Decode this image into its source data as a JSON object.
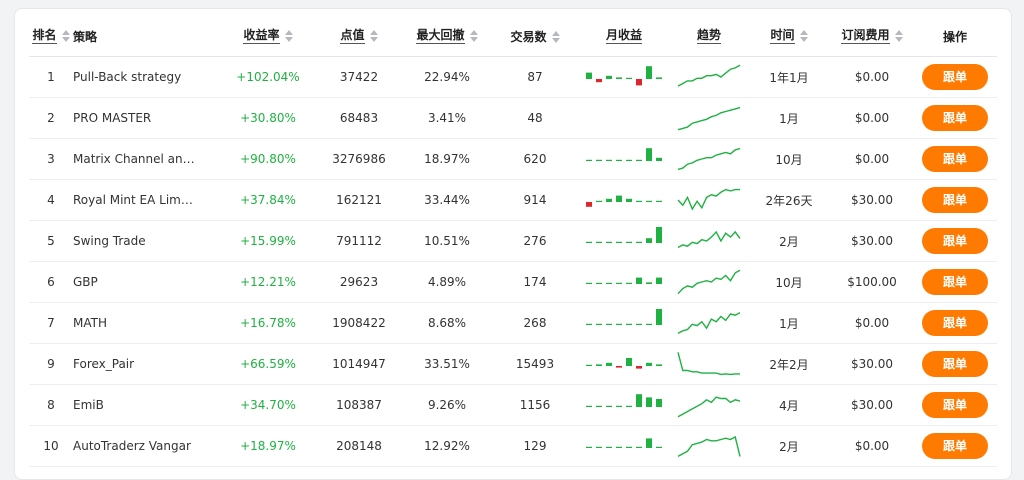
{
  "colors": {
    "accent": "#ff7a00",
    "positive": "#1fb141",
    "negative": "#e0262d"
  },
  "headers": {
    "rank": "排名",
    "strategy": "策略",
    "return": "收益率",
    "points": "点值",
    "drawdown": "最大回撤",
    "trades": "交易数",
    "monthly": "月收益",
    "trend": "趋势",
    "time": "时间",
    "fee": "订阅费用",
    "action": "操作"
  },
  "rows": [
    {
      "rank": "1",
      "name": "Pull-Back strategy",
      "return": "+102.04%",
      "points": "37422",
      "drawdown": "22.94%",
      "trades": "87",
      "time": "1年1月",
      "fee": "$0.00",
      "action": "跟单",
      "monthly": [
        2,
        -1,
        1,
        0.5,
        0,
        -2,
        4,
        0.5
      ],
      "trend": [
        0.15,
        0.25,
        0.35,
        0.35,
        0.45,
        0.45,
        0.55,
        0.55,
        0.6,
        0.5,
        0.65,
        0.8,
        0.85,
        0.95
      ]
    },
    {
      "rank": "2",
      "name": "PRO MASTER",
      "return": "+30.80%",
      "points": "68483",
      "drawdown": "3.41%",
      "trades": "48",
      "time": "1月",
      "fee": "$0.00",
      "action": "跟单",
      "monthly": [],
      "trend": [
        0.05,
        0.1,
        0.15,
        0.3,
        0.35,
        0.4,
        0.45,
        0.55,
        0.6,
        0.7,
        0.75,
        0.8,
        0.85,
        0.9
      ]
    },
    {
      "rank": "3",
      "name": "Matrix Channel anal…",
      "return": "+90.80%",
      "points": "3276986",
      "drawdown": "18.97%",
      "trades": "620",
      "time": "10月",
      "fee": "$0.00",
      "action": "跟单",
      "monthly": [
        0,
        0,
        0,
        0,
        0,
        0,
        4,
        1
      ],
      "trend": [
        0.1,
        0.15,
        0.3,
        0.35,
        0.45,
        0.5,
        0.55,
        0.55,
        0.65,
        0.7,
        0.75,
        0.7,
        0.85,
        0.9
      ]
    },
    {
      "rank": "4",
      "name": "Royal Mint EA Limitl…",
      "return": "+37.84%",
      "points": "162121",
      "drawdown": "33.44%",
      "trades": "914",
      "time": "2年26天",
      "fee": "$30.00",
      "action": "跟单",
      "monthly": [
        -1.5,
        0.3,
        1,
        2,
        1,
        0,
        0.3,
        0
      ],
      "trend": [
        0.5,
        0.3,
        0.6,
        0.15,
        0.45,
        0.2,
        0.6,
        0.7,
        0.65,
        0.8,
        0.9,
        0.85,
        0.9,
        0.9
      ]
    },
    {
      "rank": "5",
      "name": "Swing Trade",
      "return": "+15.99%",
      "points": "791112",
      "drawdown": "10.51%",
      "trades": "276",
      "time": "2月",
      "fee": "$30.00",
      "action": "跟单",
      "monthly": [
        0,
        0,
        0,
        0,
        0,
        0,
        1.5,
        5
      ],
      "trend": [
        0.25,
        0.35,
        0.3,
        0.45,
        0.4,
        0.55,
        0.5,
        0.65,
        0.85,
        0.5,
        0.8,
        0.65,
        0.85,
        0.6
      ]
    },
    {
      "rank": "6",
      "name": "GBP",
      "return": "+12.21%",
      "points": "29623",
      "drawdown": "4.89%",
      "trades": "174",
      "time": "10月",
      "fee": "$100.00",
      "action": "跟单",
      "monthly": [
        0,
        0,
        0,
        0,
        0,
        2,
        0.5,
        2
      ],
      "trend": [
        0.05,
        0.25,
        0.35,
        0.3,
        0.45,
        0.5,
        0.55,
        0.5,
        0.65,
        0.6,
        0.75,
        0.55,
        0.85,
        0.95
      ]
    },
    {
      "rank": "7",
      "name": "MATH",
      "return": "+16.78%",
      "points": "1908422",
      "drawdown": "8.68%",
      "trades": "268",
      "time": "1月",
      "fee": "$0.00",
      "action": "跟单",
      "monthly": [
        0,
        0,
        0,
        0,
        0,
        0,
        0,
        5
      ],
      "trend": [
        0.1,
        0.2,
        0.25,
        0.45,
        0.4,
        0.55,
        0.3,
        0.65,
        0.55,
        0.75,
        0.6,
        0.85,
        0.8,
        0.9
      ]
    },
    {
      "rank": "9",
      "name": "Forex_Pair",
      "return": "+66.59%",
      "points": "1014947",
      "drawdown": "33.51%",
      "trades": "15493",
      "time": "2年2月",
      "fee": "$30.00",
      "action": "跟单",
      "monthly": [
        0,
        0.5,
        1,
        -0.5,
        2.5,
        -0.8,
        1,
        0.5
      ],
      "trend": [
        0.95,
        0.25,
        0.25,
        0.2,
        0.2,
        0.15,
        0.15,
        0.15,
        0.15,
        0.1,
        0.12,
        0.1,
        0.12,
        0.12
      ]
    },
    {
      "rank": "8",
      "name": "EmiB",
      "return": "+34.70%",
      "points": "108387",
      "drawdown": "9.26%",
      "trades": "1156",
      "time": "4月",
      "fee": "$30.00",
      "action": "跟单",
      "monthly": [
        0,
        0,
        0,
        0,
        0,
        4,
        3,
        2.5
      ],
      "trend": [
        0.05,
        0.15,
        0.25,
        0.35,
        0.45,
        0.55,
        0.7,
        0.6,
        0.8,
        0.75,
        0.75,
        0.6,
        0.7,
        0.65
      ]
    },
    {
      "rank": "10",
      "name": "AutoTraderz Vangar",
      "return": "+18.97%",
      "points": "208148",
      "drawdown": "12.92%",
      "trades": "129",
      "time": "2月",
      "fee": "$0.00",
      "action": "跟单",
      "monthly": [
        0,
        0,
        0,
        0,
        0,
        0,
        3,
        0
      ],
      "trend": [
        0.1,
        0.2,
        0.3,
        0.55,
        0.6,
        0.65,
        0.75,
        0.7,
        0.7,
        0.75,
        0.8,
        0.75,
        0.85,
        0.1
      ]
    }
  ]
}
